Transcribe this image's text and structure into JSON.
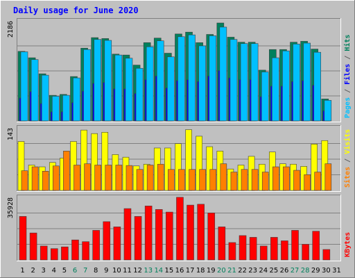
{
  "colors": {
    "background": "#c0c0c0",
    "hits": "#00805c",
    "files": "#0000ff",
    "pages": "#00c0ff",
    "visits": "#ffff00",
    "sites": "#ff8000",
    "kbytes": "#ff0000",
    "title": "#0000ff",
    "weekend_day": "#00805c"
  },
  "chart_data": {
    "type": "bar",
    "title": "Daily usage for June 2020",
    "days": [
      "1",
      "2",
      "3",
      "4",
      "5",
      "6",
      "7",
      "8",
      "9",
      "10",
      "11",
      "12",
      "13",
      "14",
      "15",
      "16",
      "17",
      "18",
      "19",
      "20",
      "21",
      "22",
      "23",
      "24",
      "25",
      "26",
      "27",
      "28",
      "29",
      "30",
      "31"
    ],
    "weekend_days": [
      "6",
      "7",
      "13",
      "14",
      "20",
      "21",
      "27",
      "28"
    ],
    "panels": [
      {
        "id": "hits-files-pages",
        "ymax_label": "2186",
        "ymax": 2186,
        "side_label": [
          {
            "text": "Pages",
            "color": "#00c0ff"
          },
          {
            "text": " / ",
            "color": "#606060"
          },
          {
            "text": "Files",
            "color": "#0000ff"
          },
          {
            "text": " / ",
            "color": "#606060"
          },
          {
            "text": "Hits",
            "color": "#00805c"
          }
        ],
        "series": [
          {
            "name": "Hits",
            "color": "#00805c",
            "values": [
              1520,
              1380,
              1030,
              560,
              580,
              970,
              1590,
              1820,
              1800,
              1460,
              1440,
              1220,
              1710,
              1810,
              1480,
              1900,
              1940,
              1710,
              1890,
              2140,
              1830,
              1720,
              1720,
              1110,
              1560,
              1560,
              1720,
              1740,
              1570,
              480,
              0
            ]
          },
          {
            "name": "Files",
            "color": "#0000ff",
            "values": [
              500,
              640,
              380,
              200,
              200,
              400,
              650,
              820,
              840,
              700,
              700,
              600,
              900,
              980,
              720,
              880,
              900,
              860,
              980,
              1100,
              940,
              900,
              900,
              530,
              760,
              760,
              860,
              880,
              780,
              220,
              0
            ]
          },
          {
            "name": "Pages",
            "color": "#00c0ff",
            "values": [
              1510,
              1340,
              1000,
              540,
              560,
              940,
              1560,
              1780,
              1760,
              1440,
              1370,
              1150,
              1620,
              1750,
              1400,
              1840,
              1880,
              1640,
              1860,
              2050,
              1780,
              1690,
              1690,
              1070,
              1380,
              1530,
              1680,
              1700,
              1500,
              450,
              0
            ]
          }
        ]
      },
      {
        "id": "visits-sites",
        "ymax_label": "143",
        "ymax": 143,
        "side_label": [
          {
            "text": "Sites",
            "color": "#ff8000"
          },
          {
            "text": " / ",
            "color": "#606060"
          },
          {
            "text": "Visits",
            "color": "#ffff00"
          }
        ],
        "series": [
          {
            "name": "Visits",
            "color": "#ffff00",
            "values": [
              112,
              58,
              54,
              64,
              74,
              112,
              138,
              130,
              133,
              82,
              76,
              56,
              60,
              97,
              97,
              107,
              139,
              124,
              100,
              90,
              49,
              58,
              78,
              60,
              88,
              61,
              60,
              55,
              106,
              114,
              0
            ]
          },
          {
            "name": "Sites",
            "color": "#ff8000",
            "values": [
              45,
              54,
              44,
              56,
              90,
              58,
              61,
              58,
              58,
              58,
              57,
              48,
              58,
              60,
              48,
              48,
              48,
              48,
              48,
              61,
              42,
              48,
              48,
              42,
              54,
              54,
              46,
              36,
              42,
              61,
              0
            ]
          }
        ]
      },
      {
        "id": "kbytes",
        "ymax_label": "35928",
        "ymax": 35928,
        "side_label": [
          {
            "text": "KBytes",
            "color": "#ff0000"
          }
        ],
        "series": [
          {
            "name": "KBytes",
            "color": "#ff0000",
            "values": [
              25000,
              15500,
              8000,
              6500,
              7500,
              11500,
              10500,
              17000,
              22000,
              19000,
              29500,
              25000,
              31000,
              29000,
              27500,
              36000,
              31500,
              32000,
              27000,
              19000,
              10000,
              14000,
              13000,
              8000,
              13000,
              11000,
              17000,
              9000,
              16500,
              6000,
              0
            ]
          }
        ]
      }
    ]
  }
}
